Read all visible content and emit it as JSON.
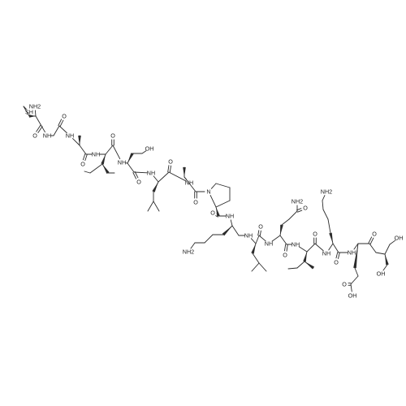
{
  "colors": {
    "bond": "#2b2b2b",
    "label": "#222222",
    "background": "#ffffff"
  },
  "atoms": [
    {
      "id": "sh",
      "text": "SH"
    },
    {
      "id": "nh2",
      "text": "NH2"
    },
    {
      "id": "o1",
      "text": "O"
    },
    {
      "id": "nh1",
      "text": "NH"
    },
    {
      "id": "o2",
      "text": "O"
    },
    {
      "id": "nh3",
      "text": "NH"
    },
    {
      "id": "o3",
      "text": "O"
    },
    {
      "id": "nh4",
      "text": "NH"
    },
    {
      "id": "o4",
      "text": "O"
    },
    {
      "id": "oh1",
      "text": "OH"
    },
    {
      "id": "nh5",
      "text": "NH"
    },
    {
      "id": "o5",
      "text": "O"
    },
    {
      "id": "nh6",
      "text": "NH"
    },
    {
      "id": "o6",
      "text": "O"
    },
    {
      "id": "nh7",
      "text": "NH"
    },
    {
      "id": "o7",
      "text": "O"
    },
    {
      "id": "npro",
      "text": "N"
    },
    {
      "id": "o8",
      "text": "O"
    },
    {
      "id": "nh8",
      "text": "NH"
    },
    {
      "id": "nh2b",
      "text": "NH2"
    },
    {
      "id": "nh9",
      "text": "NH"
    },
    {
      "id": "o9",
      "text": "O"
    },
    {
      "id": "nh2c",
      "text": "NH2"
    },
    {
      "id": "o10",
      "text": "O"
    },
    {
      "id": "nh10",
      "text": "NH"
    },
    {
      "id": "o11",
      "text": "O"
    },
    {
      "id": "nh11",
      "text": "NH"
    },
    {
      "id": "o12",
      "text": "O"
    },
    {
      "id": "nh2d",
      "text": "NH2"
    },
    {
      "id": "nh12",
      "text": "NH"
    },
    {
      "id": "o13",
      "text": "O"
    },
    {
      "id": "o14",
      "text": "O"
    },
    {
      "id": "oh2",
      "text": "OH"
    },
    {
      "id": "nh13",
      "text": "NH"
    },
    {
      "id": "o15",
      "text": "O"
    },
    {
      "id": "oh3",
      "text": "OH"
    },
    {
      "id": "oh4",
      "text": "OH"
    }
  ]
}
